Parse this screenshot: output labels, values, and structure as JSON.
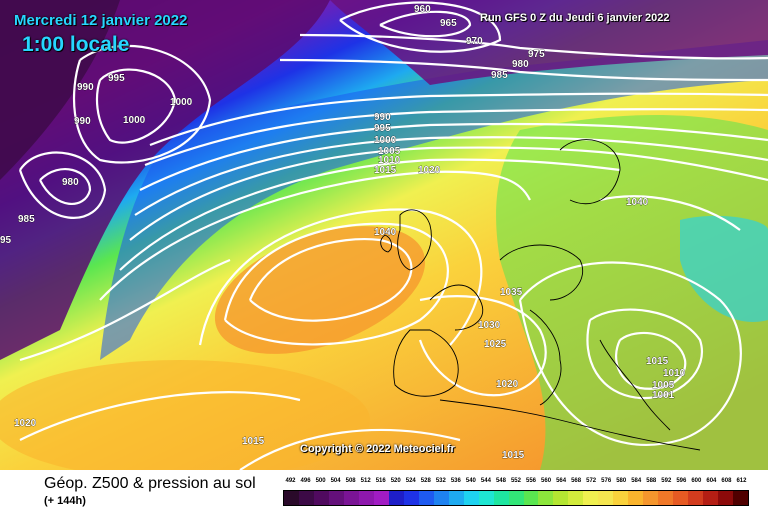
{
  "header": {
    "date": "Mercredi 12 janvier 2022",
    "time": "1:00 locale",
    "run": "Run GFS 0 Z du Jeudi 6 janvier 2022"
  },
  "copyright": "Copyright © 2022 Meteociel.fr",
  "footer": {
    "title": "Géop. Z500 & pression au sol",
    "subtitle": "(+ 144h)"
  },
  "isobar_labels": [
    "960",
    "965",
    "970",
    "975",
    "980",
    "985",
    "990",
    "995",
    "1000",
    "1005",
    "1010",
    "1015",
    "1020",
    "1025",
    "1030",
    "1035",
    "1040",
    "990",
    "990",
    "1000",
    "1000",
    "995",
    "980",
    "985",
    "95",
    "1040",
    "1020",
    "1015",
    "1015",
    "1010",
    "1005",
    "1001",
    "1020",
    "1015"
  ],
  "scale": {
    "labels": [
      "492",
      "496",
      "500",
      "504",
      "508",
      "512",
      "516",
      "520",
      "524",
      "528",
      "532",
      "536",
      "540",
      "544",
      "548",
      "552",
      "556",
      "560",
      "564",
      "568",
      "572",
      "576",
      "580",
      "584",
      "588",
      "592",
      "596",
      "600",
      "604",
      "608",
      "612"
    ],
    "colors": [
      "#2a0a2a",
      "#3c0a46",
      "#500a5f",
      "#64107a",
      "#7a1495",
      "#8e18ad",
      "#a11cc3",
      "#1e1ec8",
      "#1e32e6",
      "#1e5af0",
      "#1e82f0",
      "#1eaaf0",
      "#1ed2f0",
      "#1ee6d2",
      "#1ee6a0",
      "#32e678",
      "#5ae650",
      "#8ce63c",
      "#b4e632",
      "#d2eb3c",
      "#f0f050",
      "#f5e650",
      "#fad23c",
      "#fab42d",
      "#f5962d",
      "#f07828",
      "#e65a23",
      "#d23c1e",
      "#b41e14",
      "#8c0a0a",
      "#500000"
    ]
  },
  "colors": {
    "title": "#27d6ff",
    "isobar": "#ffffff"
  }
}
